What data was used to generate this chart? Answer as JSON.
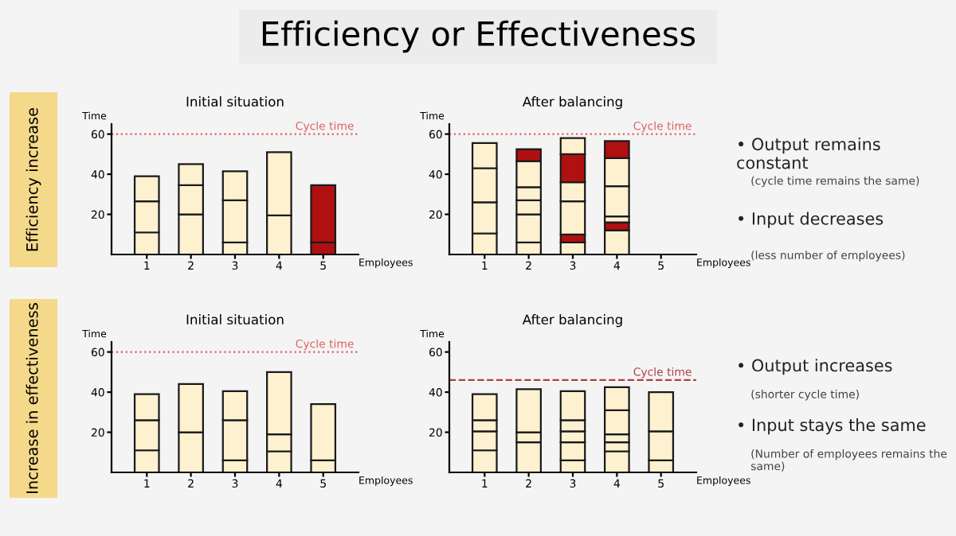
{
  "chart_data": [
    {
      "type": "other",
      "title": "Efficiency or Effectiveness"
    },
    {
      "type": "other",
      "title": "Efficiency increase"
    },
    {
      "type": "bar",
      "title": "Initial situation",
      "xlabel": "Employees",
      "ylabel": "Time",
      "categories": [
        "1",
        "2",
        "3",
        "4",
        "5"
      ],
      "stacked": true,
      "ylim": [
        0,
        65
      ],
      "yticks": [
        20,
        40,
        60
      ],
      "grid": false,
      "ref_lines": [
        {
          "axis": "y",
          "value": 60,
          "label": "Cycle time",
          "color": "#e06060",
          "line_style": "dotted"
        }
      ],
      "series": [
        {
          "values": [
            11,
            20,
            6,
            19.5,
            6
          ],
          "colors": [
            "#fdf1d0",
            "#fdf1d0",
            "#fdf1d0",
            "#fdf1d0",
            "#b01010"
          ]
        },
        {
          "values": [
            15.5,
            14.5,
            21,
            31.5,
            28.5
          ],
          "colors": [
            "#fdf1d0",
            "#fdf1d0",
            "#fdf1d0",
            "#fdf1d0",
            "#b01010"
          ]
        },
        {
          "values": [
            12.5,
            10.5,
            14.5,
            null,
            null
          ],
          "colors": [
            "#fdf1d0",
            "#fdf1d0",
            "#fdf1d0",
            "#fdf1d0",
            "#fdf1d0"
          ]
        }
      ]
    },
    {
      "type": "bar",
      "title": "After balancing",
      "xlabel": "Employees",
      "ylabel": "Time",
      "categories": [
        "1",
        "2",
        "3",
        "4",
        "5"
      ],
      "stacked": true,
      "ylim": [
        0,
        65
      ],
      "yticks": [
        20,
        40,
        60
      ],
      "grid": false,
      "ref_lines": [
        {
          "axis": "y",
          "value": 60,
          "label": "Cycle time",
          "color": "#e06060",
          "line_style": "dotted"
        }
      ],
      "series": [
        {
          "values": [
            10.5,
            6,
            6,
            12,
            null
          ],
          "colors": [
            "#fdf1d0",
            "#fdf1d0",
            "#fdf1d0",
            "#fdf1d0",
            "#fdf1d0"
          ]
        },
        {
          "values": [
            15.5,
            14,
            4,
            4,
            null
          ],
          "colors": [
            "#fdf1d0",
            "#fdf1d0",
            "#b01010",
            "#b01010",
            "#fdf1d0"
          ]
        },
        {
          "values": [
            17,
            7,
            16.5,
            3,
            null
          ],
          "colors": [
            "#fdf1d0",
            "#fdf1d0",
            "#fdf1d0",
            "#fdf1d0",
            "#fdf1d0"
          ]
        },
        {
          "values": [
            12.5,
            6.5,
            9.5,
            15,
            null
          ],
          "colors": [
            "#fdf1d0",
            "#fdf1d0",
            "#fdf1d0",
            "#fdf1d0",
            "#fdf1d0"
          ]
        },
        {
          "values": [
            null,
            13,
            14,
            14,
            null
          ],
          "colors": [
            "#fdf1d0",
            "#fdf1d0",
            "#b01010",
            "#fdf1d0",
            "#fdf1d0"
          ]
        },
        {
          "values": [
            null,
            6,
            8,
            8.5,
            null
          ],
          "colors": [
            "#fdf1d0",
            "#b01010",
            "#fdf1d0",
            "#b01010",
            "#fdf1d0"
          ]
        }
      ]
    },
    {
      "type": "other",
      "annotations": [
        "• Output remains constant",
        "(cycle time remains the same)",
        "• Input decreases",
        "(less number of employees)"
      ]
    },
    {
      "type": "other",
      "title": "Increase in effectiveness"
    },
    {
      "type": "bar",
      "title": "Initial situation",
      "xlabel": "Employees",
      "ylabel": "Time",
      "categories": [
        "1",
        "2",
        "3",
        "4",
        "5"
      ],
      "stacked": true,
      "ylim": [
        0,
        65
      ],
      "yticks": [
        20,
        40,
        60
      ],
      "grid": false,
      "ref_lines": [
        {
          "axis": "y",
          "value": 60,
          "label": "Cycle time",
          "color": "#e06060",
          "line_style": "dotted"
        }
      ],
      "series": [
        {
          "values": [
            11,
            20,
            6,
            10.5,
            6
          ],
          "colors": [
            "#fdf1d0",
            "#fdf1d0",
            "#fdf1d0",
            "#fdf1d0",
            "#fdf1d0"
          ]
        },
        {
          "values": [
            15,
            24,
            20,
            8.5,
            28
          ],
          "colors": [
            "#fdf1d0",
            "#fdf1d0",
            "#fdf1d0",
            "#fdf1d0",
            "#fdf1d0"
          ]
        },
        {
          "values": [
            13,
            null,
            14.5,
            31,
            null
          ],
          "colors": [
            "#fdf1d0",
            "#fdf1d0",
            "#fdf1d0",
            "#fdf1d0",
            "#fdf1d0"
          ]
        }
      ]
    },
    {
      "type": "bar",
      "title": "After balancing",
      "xlabel": "Employees",
      "ylabel": "Time",
      "categories": [
        "1",
        "2",
        "3",
        "4",
        "5"
      ],
      "stacked": true,
      "ylim": [
        0,
        65
      ],
      "yticks": [
        20,
        40,
        60
      ],
      "grid": false,
      "ref_lines": [
        {
          "axis": "y",
          "value": 46,
          "label": "Cycle time",
          "color": "#b04040",
          "line_style": "dashed"
        }
      ],
      "series": [
        {
          "values": [
            11,
            15,
            6,
            10.5,
            6
          ],
          "colors": [
            "#fdf1d0",
            "#fdf1d0",
            "#fdf1d0",
            "#fdf1d0",
            "#fdf1d0"
          ]
        },
        {
          "values": [
            9.5,
            5,
            9,
            4.5,
            14.5
          ],
          "colors": [
            "#fdf1d0",
            "#fdf1d0",
            "#fdf1d0",
            "#fdf1d0",
            "#fdf1d0"
          ]
        },
        {
          "values": [
            5.5,
            21.5,
            5.5,
            4,
            19.5
          ],
          "colors": [
            "#fdf1d0",
            "#fdf1d0",
            "#fdf1d0",
            "#fdf1d0",
            "#fdf1d0"
          ]
        },
        {
          "values": [
            13,
            null,
            5.5,
            12,
            null
          ],
          "colors": [
            "#fdf1d0",
            "#fdf1d0",
            "#fdf1d0",
            "#fdf1d0",
            "#fdf1d0"
          ]
        },
        {
          "values": [
            null,
            null,
            14.5,
            11.5,
            null
          ],
          "colors": [
            "#fdf1d0",
            "#fdf1d0",
            "#fdf1d0",
            "#fdf1d0",
            "#fdf1d0"
          ]
        }
      ]
    },
    {
      "type": "other",
      "annotations": [
        "• Output increases",
        "(shorter cycle time)",
        "• Input stays the same",
        "(Number of employees remains the same)"
      ]
    }
  ]
}
